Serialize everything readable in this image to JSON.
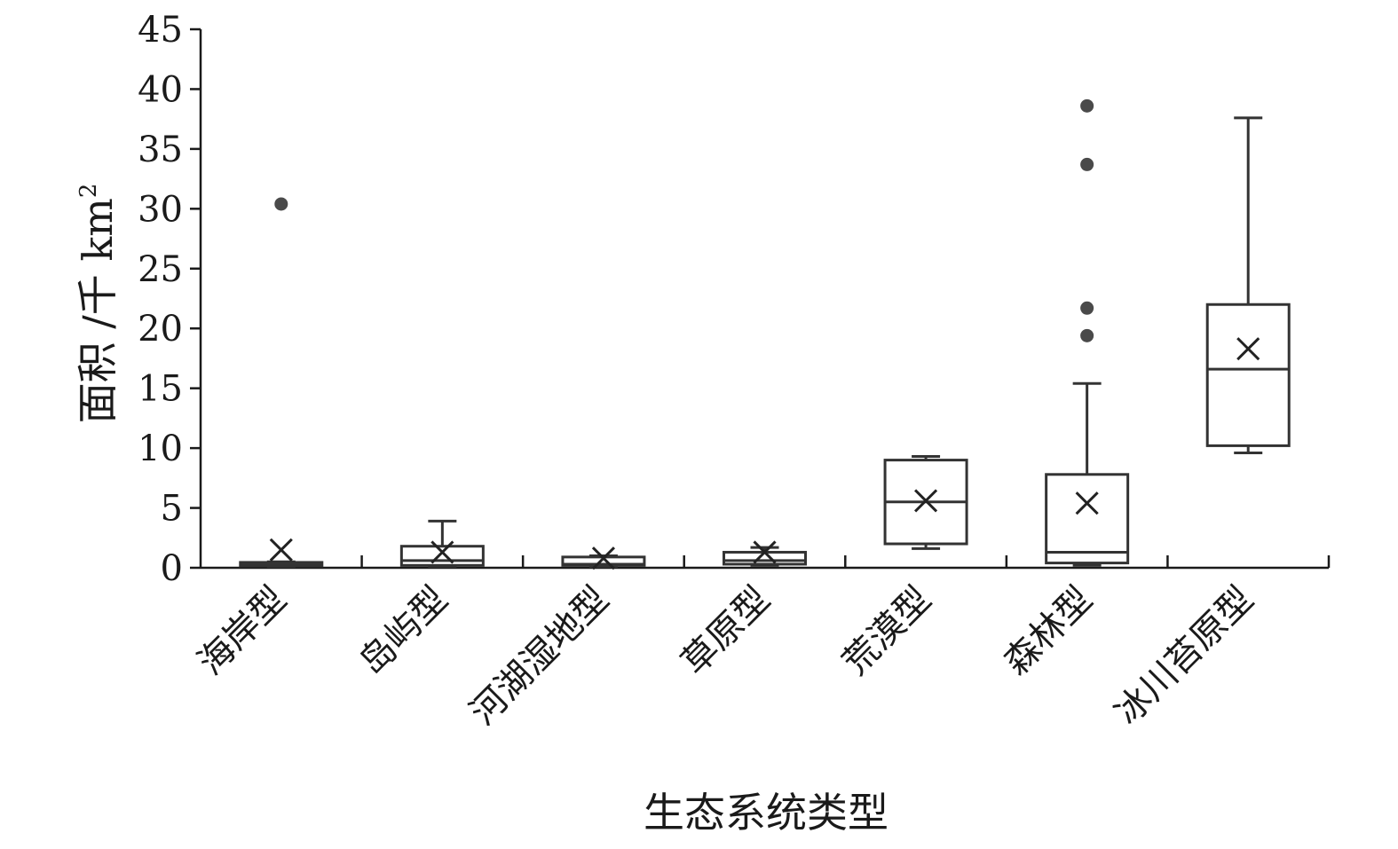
{
  "chart_data": {
    "type": "box",
    "xlabel": "生态系统类型",
    "ylabel": "面积 /千 km",
    "ylabel_superscript": "2",
    "ylim": [
      0,
      45
    ],
    "yticks": [
      0,
      5,
      10,
      15,
      20,
      25,
      30,
      35,
      40,
      45
    ],
    "grid": false,
    "categories": [
      "海岸型",
      "岛屿型",
      "河湖湿地型",
      "草原型",
      "荒漠型",
      "森林型",
      "冰川苔原型"
    ],
    "boxes": [
      {
        "category": "海岸型",
        "min": 0.1,
        "q1": 0.15,
        "median": 0.25,
        "q3": 0.45,
        "max": 0.5,
        "mean": 1.5,
        "outliers": [
          30.4
        ]
      },
      {
        "category": "岛屿型",
        "min": 0.1,
        "q1": 0.2,
        "median": 0.6,
        "q3": 1.8,
        "max": 3.9,
        "mean": 1.3,
        "outliers": []
      },
      {
        "category": "河湖湿地型",
        "min": 0.1,
        "q1": 0.2,
        "median": 0.3,
        "q3": 0.9,
        "max": 1.0,
        "mean": 0.8,
        "outliers": []
      },
      {
        "category": "草原型",
        "min": 0.2,
        "q1": 0.3,
        "median": 0.6,
        "q3": 1.3,
        "max": 1.7,
        "mean": 1.3,
        "outliers": []
      },
      {
        "category": "荒漠型",
        "min": 1.6,
        "q1": 2.0,
        "median": 5.5,
        "q3": 9.0,
        "max": 9.3,
        "mean": 5.6,
        "outliers": []
      },
      {
        "category": "森林型",
        "min": 0.2,
        "q1": 0.4,
        "median": 1.3,
        "q3": 7.8,
        "max": 15.4,
        "mean": 5.4,
        "outliers": [
          19.4,
          21.7,
          33.7,
          38.6
        ]
      },
      {
        "category": "冰川苔原型",
        "min": 9.6,
        "q1": 10.2,
        "median": 16.6,
        "q3": 22.0,
        "max": 37.6,
        "mean": 18.3,
        "outliers": []
      }
    ]
  }
}
